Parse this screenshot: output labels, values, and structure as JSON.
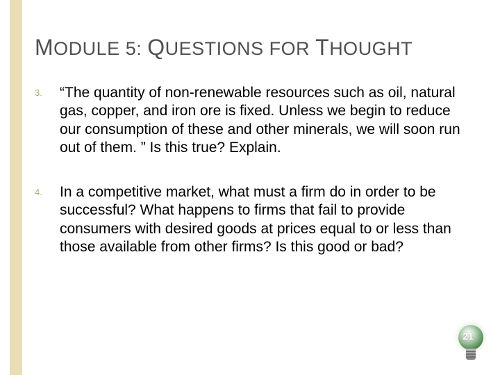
{
  "title_parts": {
    "m": "M",
    "odule": "ODULE",
    "five": " 5: ",
    "q": "Q",
    "uestions": "UESTIONS",
    "for": " FOR ",
    "t": "T",
    "hought": "HOUGHT"
  },
  "questions": [
    {
      "num": "3.",
      "text": "“The quantity of non-renewable resources such as oil, natural gas, copper, and iron ore is fixed. Unless we begin to reduce our consumption of these and other minerals, we will soon run out of them. ” Is this true? Explain."
    },
    {
      "num": "4.",
      "text": "In a competitive market, what must a firm do in order to be successful? What happens to firms that fail to provide consumers with desired goods at prices equal to or less than those available from other firms? Is this good or bad?"
    }
  ],
  "page_number": "21",
  "colors": {
    "accent_bar": "#e8ddb5",
    "title_text": "#505050",
    "number_text": "#b9a96a",
    "body_text": "#000000",
    "background": "#ffffff"
  },
  "typography": {
    "title_cap_size": 32,
    "title_small_size": 27,
    "body_size": 21,
    "num_size": 13,
    "page_num_size": 14
  }
}
